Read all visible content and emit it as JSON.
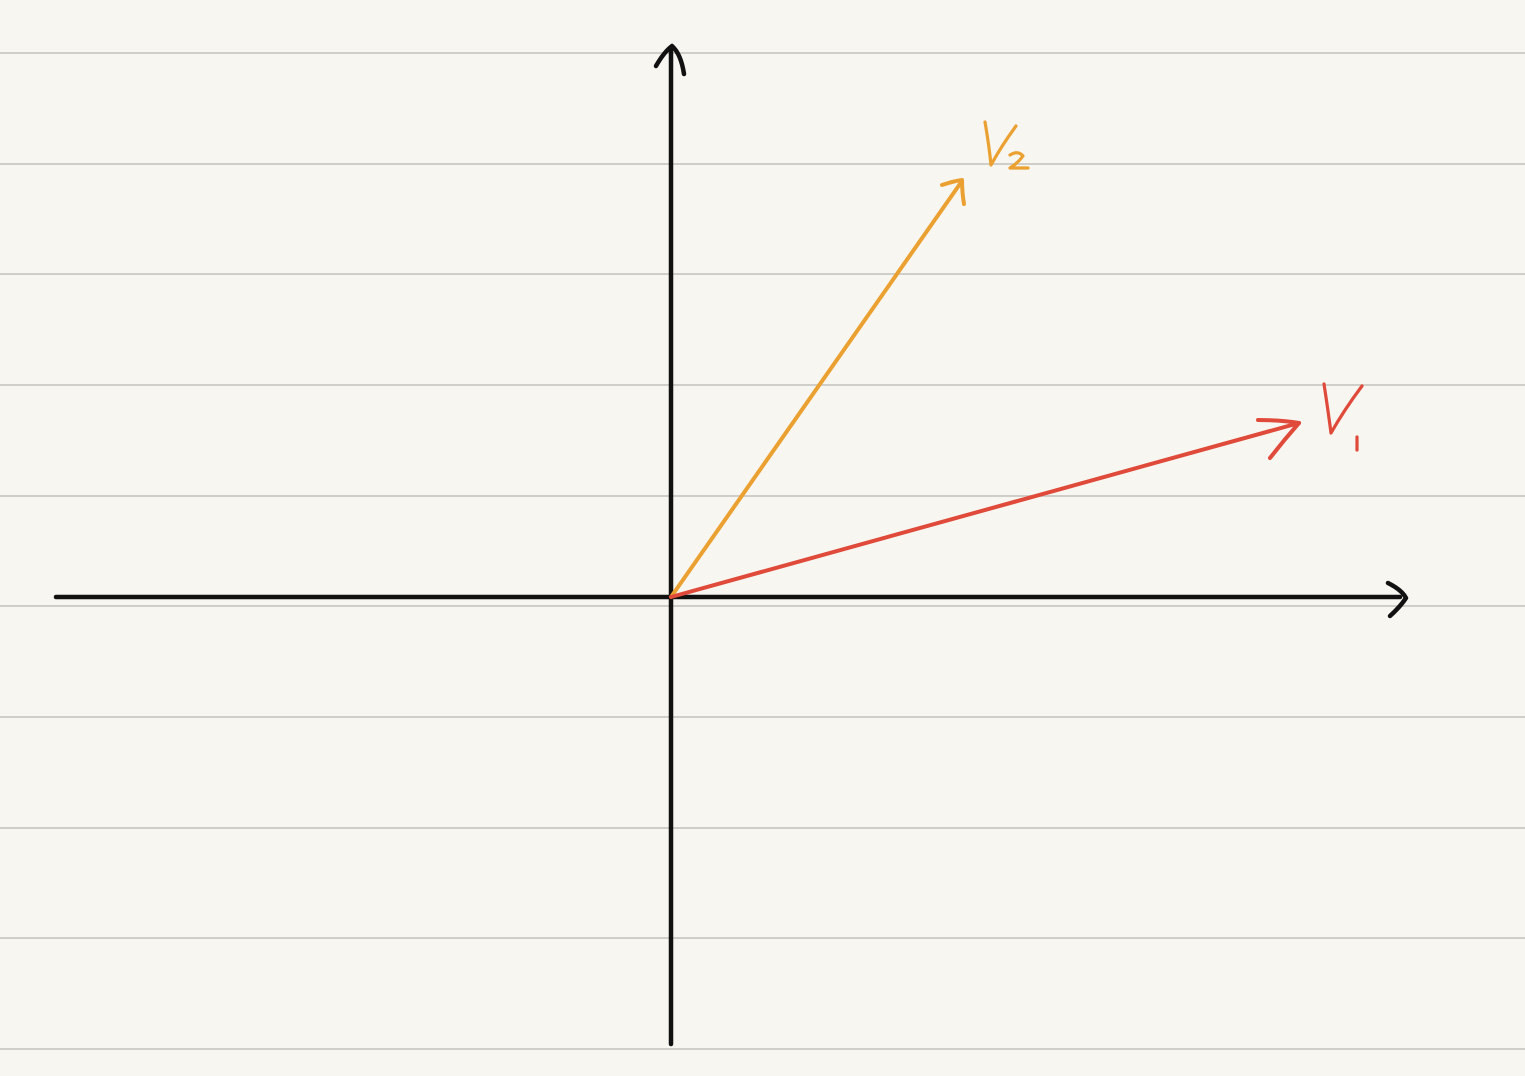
{
  "paper": {
    "background": "#f7f6f0",
    "ruled_line_color": "#cfcec8"
  },
  "axes": {
    "color": "#111111"
  },
  "vectors": [
    {
      "id": "v1",
      "label": "V1",
      "color": "#e04a3a"
    },
    {
      "id": "v2",
      "label": "V2",
      "color": "#eba132"
    }
  ]
}
